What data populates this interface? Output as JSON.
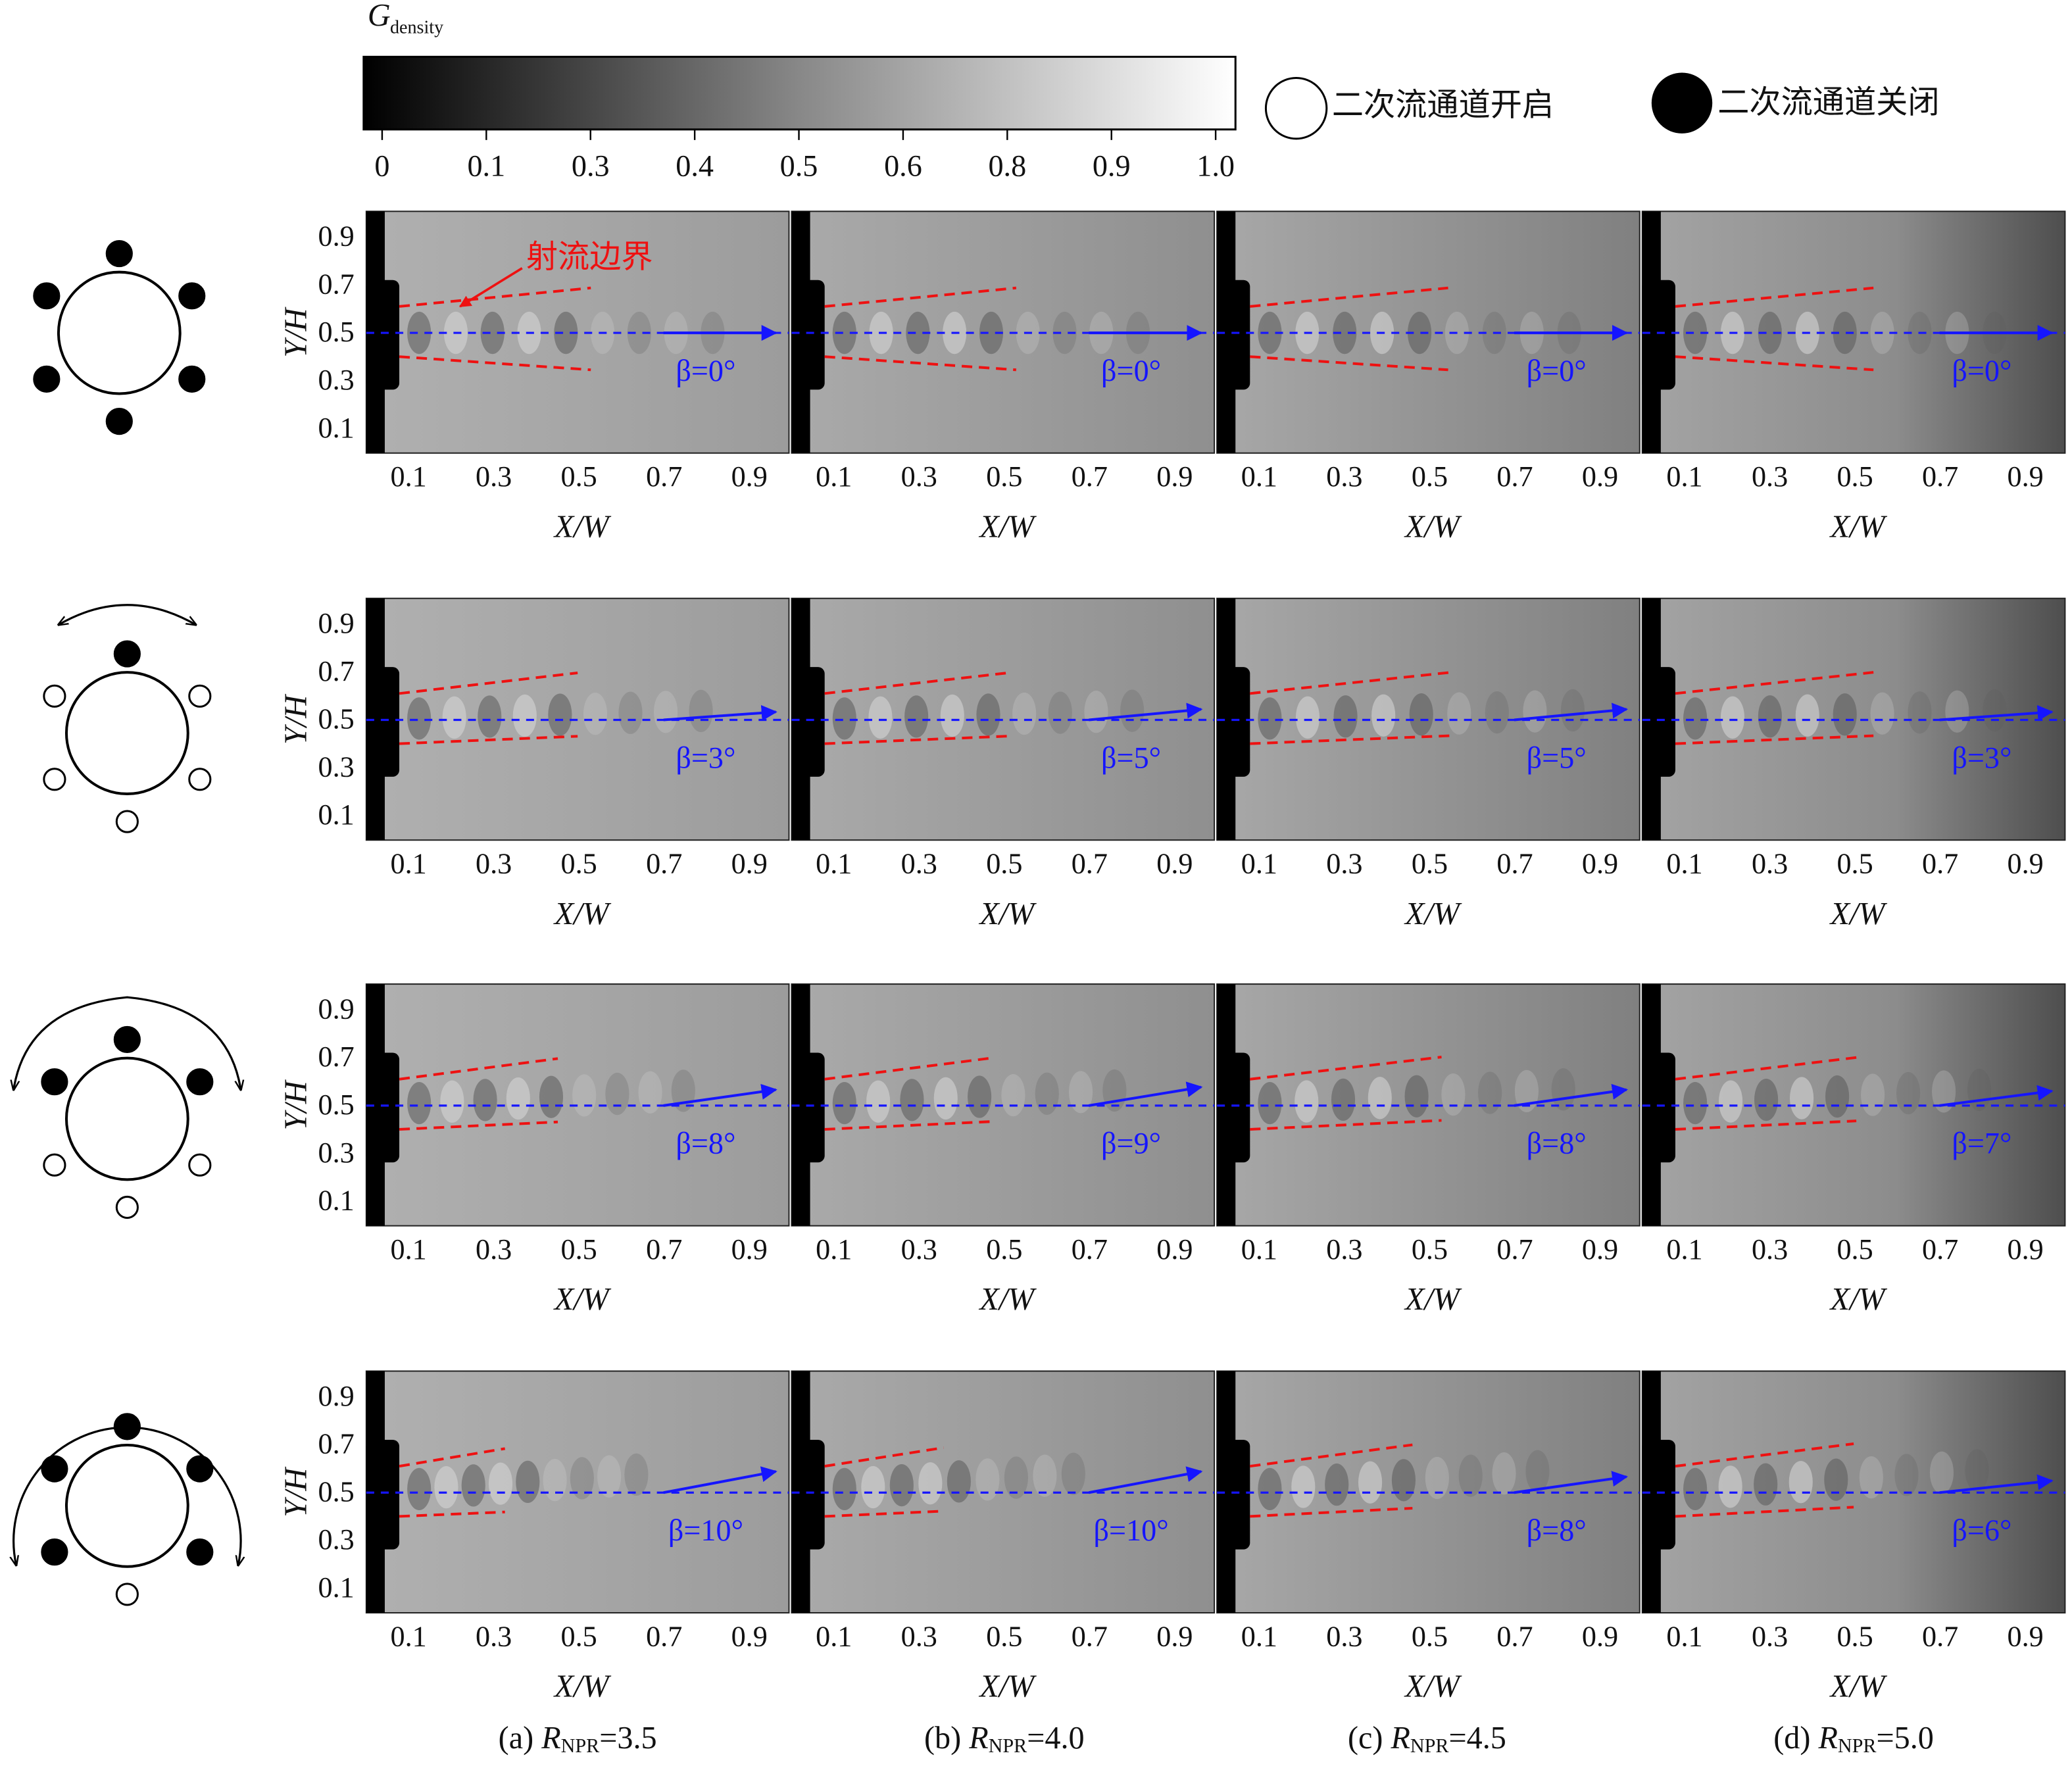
{
  "colorbar": {
    "symbol": "G",
    "subscript": "density",
    "ticks": [
      0,
      0.1,
      0.3,
      0.4,
      0.5,
      0.6,
      0.8,
      0.9,
      {
        "value": 1,
        "label": "1.0"
      }
    ]
  },
  "legend": {
    "open": "二次流通道开启",
    "closed": "二次流通道关闭"
  },
  "annotation": "射流边界",
  "axes": {
    "y_label": "Y/H",
    "x_label": "X/W",
    "yticks": [
      0.9,
      0.7,
      0.5,
      0.3,
      0.1
    ],
    "xticks": [
      0.1,
      0.3,
      0.5,
      0.7,
      0.9
    ]
  },
  "rows": [
    {
      "holes_closed": [
        true,
        true,
        true,
        true,
        true,
        true
      ],
      "beta": [
        "β=0°",
        "β=0°",
        "β=0°",
        "β=0°"
      ]
    },
    {
      "holes_closed": [
        true,
        false,
        false,
        false,
        false,
        false
      ],
      "beta": [
        "β=3°",
        "β=5°",
        "β=5°",
        "β=3°"
      ]
    },
    {
      "holes_closed": [
        true,
        true,
        false,
        false,
        false,
        true
      ],
      "beta": [
        "β=8°",
        "β=9°",
        "β=8°",
        "β=7°"
      ]
    },
    {
      "holes_closed": [
        true,
        true,
        true,
        false,
        true,
        true
      ],
      "beta": [
        "β=10°",
        "β=10°",
        "β=8°",
        "β=6°"
      ]
    }
  ],
  "columns": [
    {
      "label": "(a)",
      "symbol": "R",
      "subscript": "NPR",
      "value": "=3.5"
    },
    {
      "label": "(b)",
      "symbol": "R",
      "subscript": "NPR",
      "value": "=4.0"
    },
    {
      "label": "(c)",
      "symbol": "R",
      "subscript": "NPR",
      "value": "=4.5"
    },
    {
      "label": "(d)",
      "symbol": "R",
      "subscript": "NPR",
      "value": "=5.0"
    }
  ]
}
